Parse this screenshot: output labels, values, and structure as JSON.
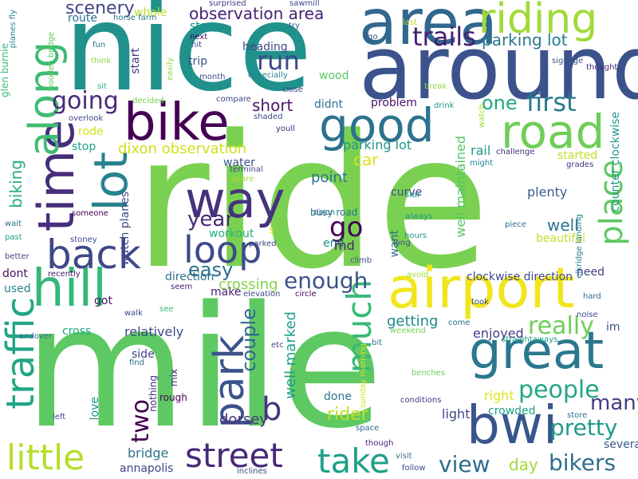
{
  "palette": {
    "purple": "#440154",
    "indigo": "#482878",
    "blue": "#3e4989",
    "slate": "#31688e",
    "teal": "#26828e",
    "sea": "#1f9e89",
    "green": "#35b779",
    "lime": "#6ece58",
    "yellowgreen": "#b5de2b",
    "yellow": "#fde725"
  },
  "words": [
    {
      "text": "ride",
      "color": "#7ad151"
    },
    {
      "text": "mile",
      "color": "#5ec962"
    },
    {
      "text": "nice",
      "color": "#21918c"
    },
    {
      "text": "around",
      "color": "#3b528b"
    },
    {
      "text": "area",
      "color": "#31688e"
    },
    {
      "text": "riding",
      "color": "#a0da39"
    },
    {
      "text": "bike",
      "color": "#440154"
    },
    {
      "text": "good",
      "color": "#2c728e"
    },
    {
      "text": "road",
      "color": "#6ece58"
    },
    {
      "text": "time",
      "color": "#472d7b"
    },
    {
      "text": "along",
      "color": "#3fbc73"
    },
    {
      "text": "lot",
      "color": "#26828e"
    },
    {
      "text": "way",
      "color": "#46327e"
    },
    {
      "text": "hill",
      "color": "#35b779"
    },
    {
      "text": "back",
      "color": "#3e4989"
    },
    {
      "text": "airport",
      "color": "#f1e51d"
    },
    {
      "text": "great",
      "color": "#2a788e"
    },
    {
      "text": "park",
      "color": "#3b528b"
    },
    {
      "text": "bwi",
      "color": "#39568c"
    },
    {
      "text": "traffic",
      "color": "#21a685"
    },
    {
      "text": "little",
      "color": "#b5de2b"
    },
    {
      "text": "street",
      "color": "#482878"
    },
    {
      "text": "take",
      "color": "#1fa088"
    },
    {
      "text": "much",
      "color": "#38b977"
    },
    {
      "text": "loop",
      "color": "#3e4a89"
    },
    {
      "text": "place",
      "color": "#5ec962"
    },
    {
      "text": "first",
      "color": "#2a788e"
    },
    {
      "text": "run",
      "color": "#3e4989"
    },
    {
      "text": "trails",
      "color": "#481f70"
    },
    {
      "text": "going",
      "color": "#472a7a"
    },
    {
      "text": "observation area",
      "color": "#482173"
    },
    {
      "text": "scenery",
      "color": "#414487"
    },
    {
      "text": "parking",
      "color": "#2a788e"
    },
    {
      "text": "lot_2",
      "color": "#26828e"
    },
    {
      "text": "one",
      "color": "#22a884"
    },
    {
      "text": "biking",
      "color": "#25ab82"
    },
    {
      "text": "dixon observation",
      "color": "#d0e11c"
    },
    {
      "text": "easy",
      "color": "#2d708e"
    },
    {
      "text": "enough",
      "color": "#3b528b"
    },
    {
      "text": "go",
      "color": "#440154"
    },
    {
      "text": "year",
      "color": "#482878"
    },
    {
      "text": "b",
      "color": "#46337e"
    },
    {
      "text": "couple",
      "color": "#31688e"
    },
    {
      "text": "really",
      "color": "#6ece58"
    },
    {
      "text": "people",
      "color": "#22a884"
    },
    {
      "text": "many",
      "color": "#433e85"
    },
    {
      "text": "pretty",
      "color": "#1f9a8a"
    },
    {
      "text": "bikers",
      "color": "#2e6e8e"
    },
    {
      "text": "view",
      "color": "#2f6c8e"
    },
    {
      "text": "two",
      "color": "#440154"
    },
    {
      "text": "well marked",
      "color": "#1e9c89"
    },
    {
      "text": "well maintained",
      "color": "#54c568"
    },
    {
      "text": "counter clockwise",
      "color": "#1f988b"
    },
    {
      "text": "rider",
      "color": "#c2df23"
    },
    {
      "text": "parking lot",
      "color": "#1f948c"
    },
    {
      "text": "point",
      "color": "#2a768e"
    },
    {
      "text": "car",
      "color": "#dde318"
    },
    {
      "text": "short",
      "color": "#481668"
    },
    {
      "text": "plenty",
      "color": "#365c8d"
    },
    {
      "text": "well",
      "color": "#2a778e"
    },
    {
      "text": "beautiful",
      "color": "#bddf26"
    },
    {
      "text": "started",
      "color": "#bddf26"
    },
    {
      "text": "getting",
      "color": "#23898e"
    },
    {
      "text": "crossing",
      "color": "#84d44b"
    },
    {
      "text": "relatively",
      "color": "#3e4989"
    },
    {
      "text": "enjoyed",
      "color": "#433e85"
    },
    {
      "text": "bridge",
      "color": "#2c728e"
    },
    {
      "text": "day",
      "color": "#a2da37"
    },
    {
      "text": "workout",
      "color": "#29af7f"
    },
    {
      "text": "crowded",
      "color": "#1fa187"
    },
    {
      "text": "light",
      "color": "#404688"
    },
    {
      "text": "annapolis",
      "color": "#424186"
    },
    {
      "text": "dorsey",
      "color": "#46327e"
    },
    {
      "text": "done",
      "color": "#2a768e"
    },
    {
      "text": "whole",
      "color": "#bddf26"
    },
    {
      "text": "route",
      "color": "#2c728e"
    },
    {
      "text": "steep",
      "color": "#1f958b"
    },
    {
      "text": "start",
      "color": "#472d7b"
    },
    {
      "text": "heading",
      "color": "#3f4889"
    },
    {
      "text": "trip",
      "color": "#3b518b"
    },
    {
      "text": "stop",
      "color": "#1fa287"
    },
    {
      "text": "rode",
      "color": "#d2e21b"
    },
    {
      "text": "water",
      "color": "#3b528b"
    },
    {
      "text": "watch planes",
      "color": "#3e4989"
    },
    {
      "text": "problem",
      "color": "#471063"
    },
    {
      "text": "wood",
      "color": "#5cc863"
    },
    {
      "text": "didnt",
      "color": "#2c718e"
    },
    {
      "text": "direction",
      "color": "#2e6e8e"
    },
    {
      "text": "clockwise direction",
      "color": "#3e4a89"
    },
    {
      "text": "need",
      "color": "#433e85"
    },
    {
      "text": "im",
      "color": "#3b528b"
    },
    {
      "text": "cross",
      "color": "#22a785"
    },
    {
      "text": "side",
      "color": "#424086"
    },
    {
      "text": "used",
      "color": "#26828e"
    },
    {
      "text": "got",
      "color": "#481769"
    },
    {
      "text": "dont",
      "color": "#471164"
    },
    {
      "text": "make",
      "color": "#481c6e"
    },
    {
      "text": "want",
      "color": "#2e6e8e"
    },
    {
      "text": "busy road",
      "color": "#2d718e"
    },
    {
      "text": "curve",
      "color": "#3f4788"
    },
    {
      "text": "end",
      "color": "#228c8d"
    },
    {
      "text": "md",
      "color": "#482475"
    },
    {
      "text": "rail",
      "color": "#1f988b"
    },
    {
      "text": "right",
      "color": "#e2e418"
    },
    {
      "text": "several",
      "color": "#39568c"
    },
    {
      "text": "love",
      "color": "#1f958b"
    },
    {
      "text": "mix",
      "color": "#482878"
    },
    {
      "text": "nothing",
      "color": "#472c7a"
    },
    {
      "text": "rough",
      "color": "#440154"
    },
    {
      "text": "watch",
      "color": "#a5db36"
    },
    {
      "text": "glen burnie",
      "color": "#3aba76"
    },
    {
      "text": "planes fly",
      "color": "#26828e"
    },
    {
      "text": "wooden bridge",
      "color": "#5ec962"
    },
    {
      "text": "horse farm",
      "color": "#2a768e"
    },
    {
      "text": "fun",
      "color": "#2e6e8e"
    },
    {
      "text": "think",
      "color": "#8bd646"
    },
    {
      "text": "sit",
      "color": "#32b67a"
    },
    {
      "text": "overlook",
      "color": "#404688"
    },
    {
      "text": "next",
      "color": "#46085c"
    },
    {
      "text": "hit",
      "color": "#3f4889"
    },
    {
      "text": "easily",
      "color": "#90d743"
    },
    {
      "text": "month",
      "color": "#3f4788"
    },
    {
      "text": "decided",
      "color": "#75d054"
    },
    {
      "text": "surprised",
      "color": "#453781"
    },
    {
      "text": "sawmill",
      "color": "#3e4989"
    },
    {
      "text": "try",
      "color": "#31688e"
    },
    {
      "text": "last",
      "color": "#b5de2b"
    },
    {
      "text": "ago",
      "color": "#3b528b"
    },
    {
      "text": "signage",
      "color": "#3b528b"
    },
    {
      "text": "thought",
      "color": "#482475"
    },
    {
      "text": "especially",
      "color": "#25848e"
    },
    {
      "text": "close",
      "color": "#414487"
    },
    {
      "text": "break",
      "color": "#90d743"
    },
    {
      "text": "compare",
      "color": "#3f4788"
    },
    {
      "text": "shaded",
      "color": "#3e4989"
    },
    {
      "text": "youll",
      "color": "#482878"
    },
    {
      "text": "drink",
      "color": "#1f968b"
    },
    {
      "text": "challenge",
      "color": "#472d7b"
    },
    {
      "text": "might",
      "color": "#25838e"
    },
    {
      "text": "grades",
      "color": "#46327e"
    },
    {
      "text": "terminal",
      "color": "#3e4989"
    },
    {
      "text": "aware",
      "color": "#a8db34"
    },
    {
      "text": "dixon",
      "color": "#2c728e"
    },
    {
      "text": "star",
      "color": "#1f978b"
    },
    {
      "text": "always",
      "color": "#1f988b"
    },
    {
      "text": "hours",
      "color": "#20928c"
    },
    {
      "text": "long",
      "color": "#3b518b"
    },
    {
      "text": "s",
      "color": "#fde725"
    },
    {
      "text": "parked",
      "color": "#3f4889"
    },
    {
      "text": "elkridge landing",
      "color": "#2a788e"
    },
    {
      "text": "piece",
      "color": "#2d708e"
    },
    {
      "text": "someone",
      "color": "#440154"
    },
    {
      "text": "stoney",
      "color": "#3e4989"
    },
    {
      "text": "better",
      "color": "#3f4889"
    },
    {
      "text": "wait",
      "color": "#2e6e8e"
    },
    {
      "text": "past",
      "color": "#1fa088"
    },
    {
      "text": "recently",
      "color": "#481467"
    },
    {
      "text": "seem",
      "color": "#482475"
    },
    {
      "text": "elevation",
      "color": "#3e4989"
    },
    {
      "text": "circle",
      "color": "#440154"
    },
    {
      "text": "climb",
      "color": "#3b528b"
    },
    {
      "text": "avoid",
      "color": "#a5db36"
    },
    {
      "text": "took",
      "color": "#3e4989"
    },
    {
      "text": "hard",
      "color": "#31688e"
    },
    {
      "text": "noise",
      "color": "#3f4889"
    },
    {
      "text": "straightaways",
      "color": "#1fa287"
    },
    {
      "text": "come",
      "color": "#2c728e"
    },
    {
      "text": "walk",
      "color": "#3e4989"
    },
    {
      "text": "see",
      "color": "#35b779"
    },
    {
      "text": "andover",
      "color": "#2e6e8e"
    },
    {
      "text": "weekend",
      "color": "#77d153"
    },
    {
      "text": "bit",
      "color": "#2c728e"
    },
    {
      "text": "sunday morning",
      "color": "#d2e21b"
    },
    {
      "text": "etc",
      "color": "#3e4989"
    },
    {
      "text": "find",
      "color": "#2e6e8e"
    },
    {
      "text": "benches",
      "color": "#6ece58"
    },
    {
      "text": "conditions",
      "color": "#453781"
    },
    {
      "text": "store",
      "color": "#2c728e"
    },
    {
      "text": "space",
      "color": "#31688e"
    },
    {
      "text": "left",
      "color": "#3e4989"
    },
    {
      "text": "though",
      "color": "#482878"
    },
    {
      "text": "visit",
      "color": "#2e6e8e"
    },
    {
      "text": "follow",
      "color": "#3e4989"
    },
    {
      "text": "inclines",
      "color": "#3e4989"
    }
  ]
}
